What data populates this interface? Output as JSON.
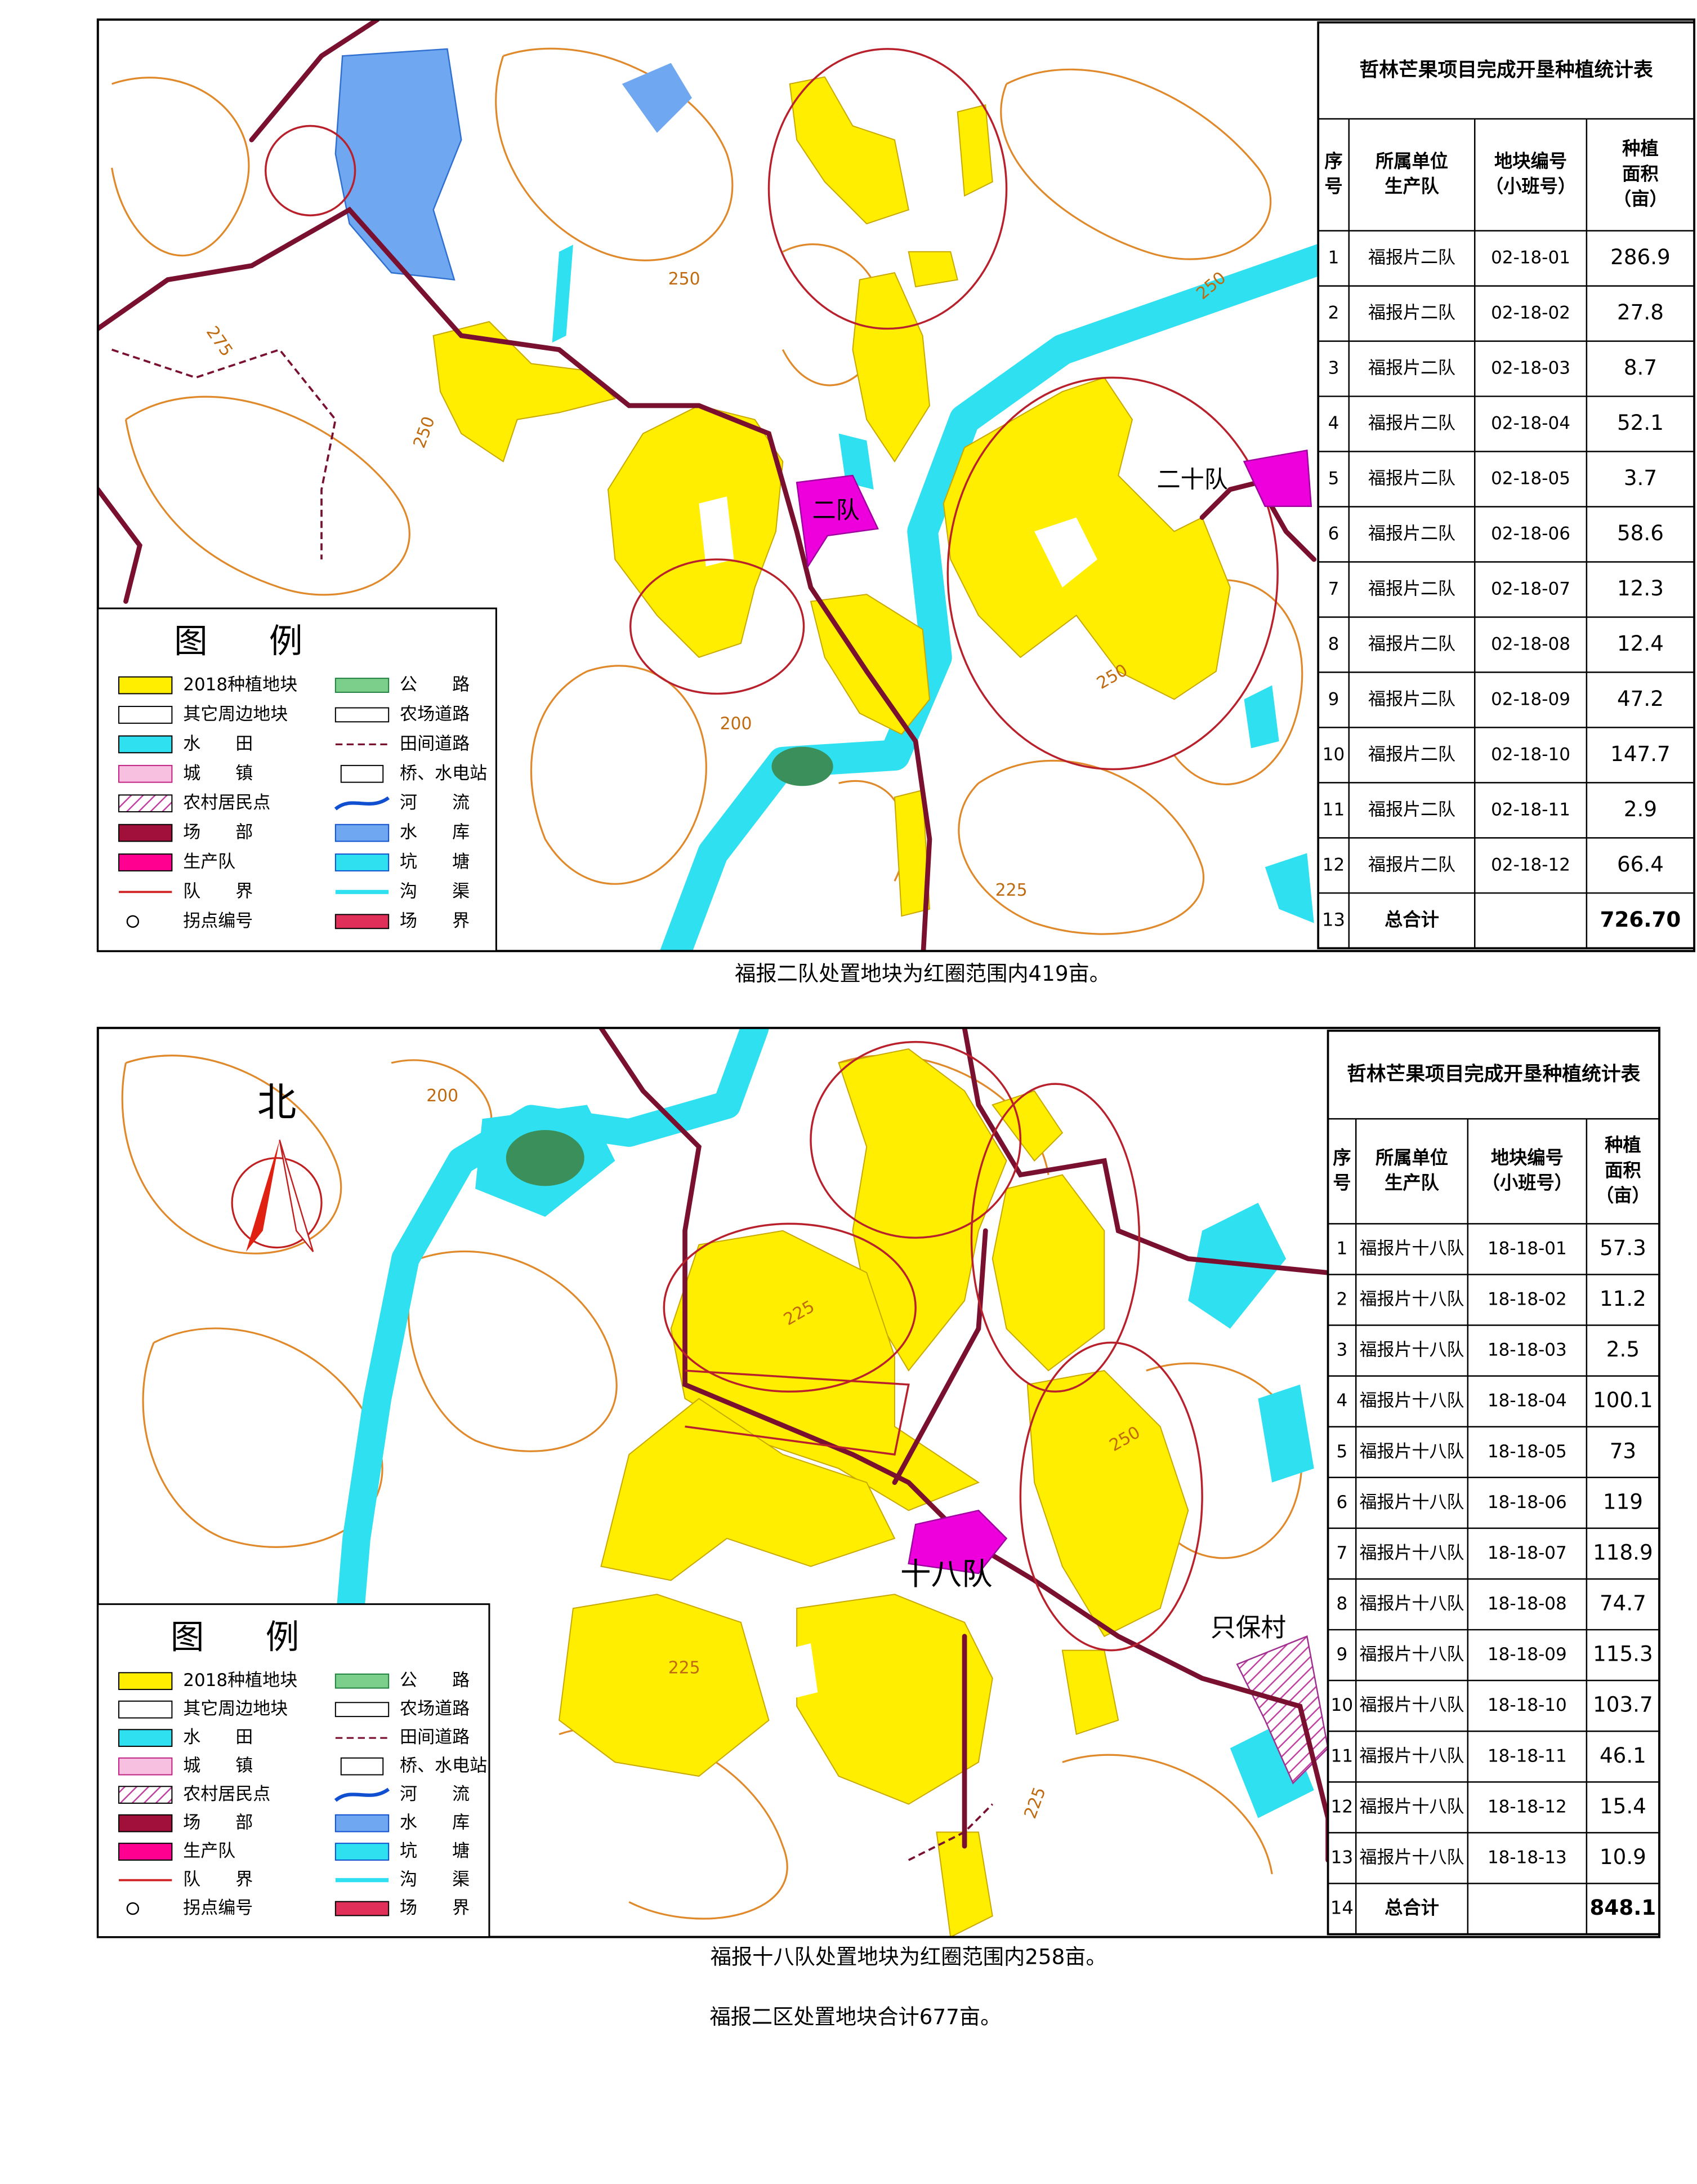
{
  "legend": {
    "title": "图例",
    "items": [
      "2018种植地块",
      "其它周边地块",
      "水　　田",
      "城　　镇",
      "农村居民点",
      "场　　部",
      "生产队",
      "队　　界",
      "拐点编号",
      "公　　路",
      "农场道路",
      "田间道路",
      "桥、水电站",
      "河　　流",
      "水　　库",
      "坑　　塘",
      "沟　　渠",
      "场　　界"
    ]
  },
  "map1": {
    "labels": {
      "team": "二队",
      "team20": "二十队"
    },
    "contours": [
      "250",
      "275",
      "250",
      "200",
      "225",
      "250",
      "250"
    ],
    "table": {
      "title": "哲林芒果项目完成开垦种植统计表",
      "headers": [
        [
          "序",
          "号"
        ],
        [
          "所属单位",
          "生产队"
        ],
        [
          "地块编号",
          "（小班号）"
        ],
        [
          "种植",
          "面积",
          "（亩）"
        ]
      ],
      "rows": [
        [
          "1",
          "福报片二队",
          "02-18-01",
          "286.9"
        ],
        [
          "2",
          "福报片二队",
          "02-18-02",
          "27.8"
        ],
        [
          "3",
          "福报片二队",
          "02-18-03",
          "8.7"
        ],
        [
          "4",
          "福报片二队",
          "02-18-04",
          "52.1"
        ],
        [
          "5",
          "福报片二队",
          "02-18-05",
          "3.7"
        ],
        [
          "6",
          "福报片二队",
          "02-18-06",
          "58.6"
        ],
        [
          "7",
          "福报片二队",
          "02-18-07",
          "12.3"
        ],
        [
          "8",
          "福报片二队",
          "02-18-08",
          "12.4"
        ],
        [
          "9",
          "福报片二队",
          "02-18-09",
          "47.2"
        ],
        [
          "10",
          "福报片二队",
          "02-18-10",
          "147.7"
        ],
        [
          "11",
          "福报片二队",
          "02-18-11",
          "2.9"
        ],
        [
          "12",
          "福报片二队",
          "02-18-12",
          "66.4"
        ]
      ],
      "total": {
        "index": "13",
        "label": "总合计",
        "area": "726.70"
      }
    },
    "caption": "福报二队处置地块为红圈范围内419亩。"
  },
  "map2": {
    "labels": {
      "north": "北",
      "team": "十八队",
      "village": "只保村"
    },
    "contours": [
      "200",
      "225",
      "250",
      "225",
      "225"
    ],
    "table": {
      "title": "哲林芒果项目完成开垦种植统计表",
      "headers": [
        [
          "序",
          "号"
        ],
        [
          "所属单位",
          "生产队"
        ],
        [
          "地块编号",
          "（小班号）"
        ],
        [
          "种植",
          "面积",
          "（亩）"
        ]
      ],
      "rows": [
        [
          "1",
          "福报片十八队",
          "18-18-01",
          "57.3"
        ],
        [
          "2",
          "福报片十八队",
          "18-18-02",
          "11.2"
        ],
        [
          "3",
          "福报片十八队",
          "18-18-03",
          "2.5"
        ],
        [
          "4",
          "福报片十八队",
          "18-18-04",
          "100.1"
        ],
        [
          "5",
          "福报片十八队",
          "18-18-05",
          "73"
        ],
        [
          "6",
          "福报片十八队",
          "18-18-06",
          "119"
        ],
        [
          "7",
          "福报片十八队",
          "18-18-07",
          "118.9"
        ],
        [
          "8",
          "福报片十八队",
          "18-18-08",
          "74.7"
        ],
        [
          "9",
          "福报片十八队",
          "18-18-09",
          "115.3"
        ],
        [
          "10",
          "福报片十八队",
          "18-18-10",
          "103.7"
        ],
        [
          "11",
          "福报片十八队",
          "18-18-11",
          "46.1"
        ],
        [
          "12",
          "福报片十八队",
          "18-18-12",
          "15.4"
        ],
        [
          "13",
          "福报片十八队",
          "18-18-13",
          "10.9"
        ]
      ],
      "total": {
        "index": "14",
        "label": "总合计",
        "area": "848.1"
      }
    },
    "caption": "福报十八队处置地块为红圈范围内258亩。"
  },
  "summary": "福报二区处置地块合计677亩。"
}
